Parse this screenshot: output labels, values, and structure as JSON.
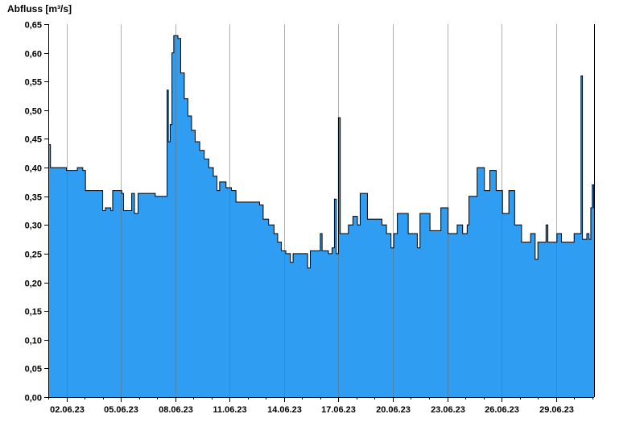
{
  "chart_data": {
    "type": "area",
    "title": "Abfluss [m³/s]",
    "xlabel": "",
    "ylabel": "Abfluss [m³/s]",
    "xlim": [
      0,
      30.1
    ],
    "ylim": [
      0,
      0.65
    ],
    "grid": "vertical-only",
    "legend": "none",
    "colors": {
      "fill": "#2E9DF2",
      "line": "#000000",
      "grid": "#6e6e6e",
      "axis": "#000000",
      "background": "#ffffff"
    },
    "y_ticks": [
      {
        "v": 0.0,
        "label": "0,00"
      },
      {
        "v": 0.05,
        "label": "0,05"
      },
      {
        "v": 0.1,
        "label": "0,10"
      },
      {
        "v": 0.15,
        "label": "0,15"
      },
      {
        "v": 0.2,
        "label": "0,20"
      },
      {
        "v": 0.25,
        "label": "0,25"
      },
      {
        "v": 0.3,
        "label": "0,30"
      },
      {
        "v": 0.35,
        "label": "0,35"
      },
      {
        "v": 0.4,
        "label": "0,40"
      },
      {
        "v": 0.45,
        "label": "0,45"
      },
      {
        "v": 0.5,
        "label": "0,50"
      },
      {
        "v": 0.55,
        "label": "0,55"
      },
      {
        "v": 0.6,
        "label": "0,60"
      },
      {
        "v": 0.65,
        "label": "0,65"
      }
    ],
    "x_ticks": [
      {
        "t": 1,
        "label": "02.06.23"
      },
      {
        "t": 4,
        "label": "05.06.23"
      },
      {
        "t": 7,
        "label": "08.06.23"
      },
      {
        "t": 10,
        "label": "11.06.23"
      },
      {
        "t": 13,
        "label": "14.06.23"
      },
      {
        "t": 16,
        "label": "17.06.23"
      },
      {
        "t": 19,
        "label": "20.06.23"
      },
      {
        "t": 22,
        "label": "23.06.23"
      },
      {
        "t": 25,
        "label": "26.06.23"
      },
      {
        "t": 28,
        "label": "29.06.23"
      }
    ],
    "minor_x_ticks_days": 1,
    "series": [
      {
        "name": "Abfluss",
        "unit": "m³/s",
        "t0_date": "01.06.23",
        "points": [
          [
            0.0,
            0.44
          ],
          [
            0.12,
            0.4
          ],
          [
            0.9,
            0.4
          ],
          [
            1.0,
            0.395
          ],
          [
            1.6,
            0.4
          ],
          [
            1.9,
            0.395
          ],
          [
            2.05,
            0.36
          ],
          [
            2.9,
            0.36
          ],
          [
            3.0,
            0.325
          ],
          [
            3.15,
            0.33
          ],
          [
            3.45,
            0.325
          ],
          [
            3.55,
            0.36
          ],
          [
            4.05,
            0.355
          ],
          [
            4.15,
            0.325
          ],
          [
            4.5,
            0.325
          ],
          [
            4.6,
            0.355
          ],
          [
            4.75,
            0.32
          ],
          [
            4.95,
            0.355
          ],
          [
            5.5,
            0.355
          ],
          [
            5.9,
            0.35
          ],
          [
            6.45,
            0.35
          ],
          [
            6.55,
            0.535
          ],
          [
            6.62,
            0.445
          ],
          [
            6.72,
            0.475
          ],
          [
            6.82,
            0.6
          ],
          [
            6.92,
            0.63
          ],
          [
            7.15,
            0.625
          ],
          [
            7.3,
            0.565
          ],
          [
            7.5,
            0.52
          ],
          [
            7.7,
            0.49
          ],
          [
            7.9,
            0.465
          ],
          [
            8.1,
            0.445
          ],
          [
            8.35,
            0.43
          ],
          [
            8.6,
            0.415
          ],
          [
            8.85,
            0.4
          ],
          [
            9.1,
            0.385
          ],
          [
            9.3,
            0.36
          ],
          [
            9.45,
            0.375
          ],
          [
            9.8,
            0.365
          ],
          [
            10.1,
            0.36
          ],
          [
            10.35,
            0.34
          ],
          [
            11.5,
            0.34
          ],
          [
            11.65,
            0.335
          ],
          [
            11.85,
            0.31
          ],
          [
            12.15,
            0.3
          ],
          [
            12.45,
            0.285
          ],
          [
            12.65,
            0.27
          ],
          [
            12.85,
            0.255
          ],
          [
            13.1,
            0.25
          ],
          [
            13.35,
            0.235
          ],
          [
            13.5,
            0.25
          ],
          [
            14.15,
            0.25
          ],
          [
            14.3,
            0.225
          ],
          [
            14.45,
            0.255
          ],
          [
            14.9,
            0.255
          ],
          [
            15.0,
            0.285
          ],
          [
            15.1,
            0.255
          ],
          [
            15.45,
            0.25
          ],
          [
            15.65,
            0.26
          ],
          [
            15.78,
            0.345
          ],
          [
            15.88,
            0.25
          ],
          [
            16.0,
            0.487
          ],
          [
            16.1,
            0.285
          ],
          [
            16.45,
            0.285
          ],
          [
            16.55,
            0.3
          ],
          [
            16.8,
            0.315
          ],
          [
            17.05,
            0.3
          ],
          [
            17.2,
            0.355
          ],
          [
            17.5,
            0.355
          ],
          [
            17.6,
            0.31
          ],
          [
            18.2,
            0.31
          ],
          [
            18.4,
            0.3
          ],
          [
            18.65,
            0.285
          ],
          [
            18.9,
            0.26
          ],
          [
            19.05,
            0.285
          ],
          [
            19.25,
            0.32
          ],
          [
            19.75,
            0.32
          ],
          [
            19.85,
            0.285
          ],
          [
            20.25,
            0.285
          ],
          [
            20.35,
            0.26
          ],
          [
            20.5,
            0.32
          ],
          [
            20.95,
            0.32
          ],
          [
            21.05,
            0.29
          ],
          [
            21.55,
            0.29
          ],
          [
            21.65,
            0.33
          ],
          [
            21.95,
            0.33
          ],
          [
            22.05,
            0.285
          ],
          [
            22.45,
            0.285
          ],
          [
            22.55,
            0.3
          ],
          [
            22.85,
            0.285
          ],
          [
            23.1,
            0.3
          ],
          [
            23.2,
            0.35
          ],
          [
            23.55,
            0.35
          ],
          [
            23.65,
            0.4
          ],
          [
            23.95,
            0.4
          ],
          [
            24.05,
            0.36
          ],
          [
            24.25,
            0.36
          ],
          [
            24.35,
            0.395
          ],
          [
            24.6,
            0.395
          ],
          [
            24.7,
            0.36
          ],
          [
            24.95,
            0.36
          ],
          [
            25.05,
            0.32
          ],
          [
            25.3,
            0.32
          ],
          [
            25.4,
            0.36
          ],
          [
            25.6,
            0.36
          ],
          [
            25.72,
            0.3
          ],
          [
            26.0,
            0.3
          ],
          [
            26.1,
            0.27
          ],
          [
            26.5,
            0.27
          ],
          [
            26.6,
            0.285
          ],
          [
            26.85,
            0.24
          ],
          [
            27.0,
            0.27
          ],
          [
            27.35,
            0.27
          ],
          [
            27.45,
            0.3
          ],
          [
            27.55,
            0.27
          ],
          [
            27.95,
            0.27
          ],
          [
            28.05,
            0.285
          ],
          [
            28.3,
            0.27
          ],
          [
            28.9,
            0.27
          ],
          [
            29.0,
            0.285
          ],
          [
            29.3,
            0.285
          ],
          [
            29.38,
            0.56
          ],
          [
            29.46,
            0.275
          ],
          [
            29.6,
            0.275
          ],
          [
            29.7,
            0.285
          ],
          [
            29.82,
            0.275
          ],
          [
            29.92,
            0.33
          ],
          [
            30.0,
            0.37
          ],
          [
            30.08,
            0.33
          ]
        ]
      }
    ]
  }
}
